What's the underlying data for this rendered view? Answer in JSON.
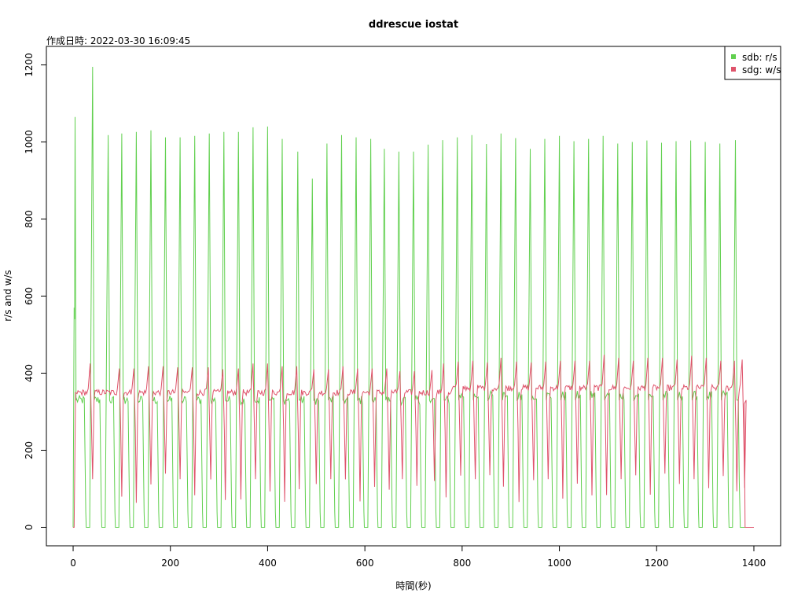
{
  "chart_data": {
    "type": "line",
    "title": "ddrescue iostat",
    "subtitle": "作成日時: 2022-03-30 16:09:45",
    "xlabel": "時間(秒)",
    "ylabel": "r/s and w/s",
    "xlim": [
      -55,
      1455
    ],
    "ylim": [
      -48,
      1248
    ],
    "x_ticks": [
      0,
      200,
      400,
      600,
      800,
      1000,
      1200,
      1400
    ],
    "y_ticks": [
      0,
      200,
      400,
      600,
      800,
      1000,
      1200
    ],
    "grid": false,
    "legend_position": "top-right",
    "series": [
      {
        "name": "sdb: r/s",
        "color": "#61D04F"
      },
      {
        "name": "sdg: w/s",
        "color": "#DF536B"
      }
    ],
    "cycle": {
      "read_peaks": [
        [
          4,
          1065
        ],
        [
          40,
          1195
        ],
        [
          72,
          1018
        ],
        [
          100,
          1022
        ],
        [
          130,
          1026
        ],
        [
          160,
          1030
        ],
        [
          190,
          1012
        ],
        [
          220,
          1012
        ],
        [
          250,
          1016
        ],
        [
          280,
          1022
        ],
        [
          310,
          1026
        ],
        [
          340,
          1026
        ],
        [
          370,
          1038
        ],
        [
          400,
          1040
        ],
        [
          430,
          1008
        ],
        [
          462,
          975
        ],
        [
          492,
          905
        ],
        [
          522,
          996
        ],
        [
          552,
          1018
        ],
        [
          582,
          1012
        ],
        [
          612,
          1008
        ],
        [
          640,
          982
        ],
        [
          670,
          975
        ],
        [
          700,
          975
        ],
        [
          730,
          993
        ],
        [
          760,
          1005
        ],
        [
          790,
          1012
        ],
        [
          820,
          1018
        ],
        [
          850,
          995
        ],
        [
          880,
          1022
        ],
        [
          910,
          1010
        ],
        [
          940,
          982
        ],
        [
          970,
          1008
        ],
        [
          1000,
          1016
        ],
        [
          1030,
          1002
        ],
        [
          1060,
          1008
        ],
        [
          1090,
          1016
        ],
        [
          1120,
          996
        ],
        [
          1150,
          1000
        ],
        [
          1180,
          1004
        ],
        [
          1210,
          998
        ],
        [
          1240,
          1002
        ],
        [
          1270,
          1004
        ],
        [
          1300,
          1000
        ],
        [
          1330,
          996
        ],
        [
          1362,
          1005
        ]
      ],
      "write_peaks": [
        [
          35,
          425
        ],
        [
          95,
          412
        ],
        [
          125,
          412
        ],
        [
          155,
          418
        ],
        [
          185,
          418
        ],
        [
          215,
          415
        ],
        [
          245,
          415
        ],
        [
          278,
          415
        ],
        [
          308,
          410
        ],
        [
          340,
          412
        ],
        [
          370,
          425
        ],
        [
          400,
          425
        ],
        [
          430,
          418
        ],
        [
          460,
          418
        ],
        [
          495,
          410
        ],
        [
          525,
          410
        ],
        [
          555,
          418
        ],
        [
          585,
          412
        ],
        [
          615,
          412
        ],
        [
          645,
          412
        ],
        [
          672,
          405
        ],
        [
          702,
          405
        ],
        [
          738,
          408
        ],
        [
          762,
          425
        ],
        [
          792,
          430
        ],
        [
          822,
          432
        ],
        [
          852,
          428
        ],
        [
          880,
          440
        ],
        [
          912,
          430
        ],
        [
          942,
          428
        ],
        [
          972,
          430
        ],
        [
          1002,
          432
        ],
        [
          1032,
          432
        ],
        [
          1062,
          432
        ],
        [
          1092,
          448
        ],
        [
          1122,
          440
        ],
        [
          1152,
          432
        ],
        [
          1182,
          440
        ],
        [
          1212,
          440
        ],
        [
          1242,
          435
        ],
        [
          1272,
          445
        ],
        [
          1302,
          440
        ],
        [
          1332,
          432
        ],
        [
          1360,
          432
        ],
        [
          1376,
          435
        ]
      ],
      "read_baseline_early": 330,
      "read_baseline_late": 342,
      "write_baseline_early": 350,
      "write_baseline_late": 362,
      "write_dip_low": 125,
      "end_x": 1400
    }
  }
}
